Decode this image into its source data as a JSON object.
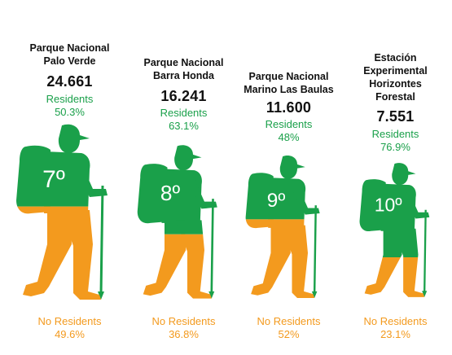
{
  "colors": {
    "residents": "#1aa04a",
    "no_residents": "#f39a1e",
    "text": "#111111"
  },
  "chart_data": {
    "type": "bar",
    "categories": [
      "Parque Nacional Palo Verde",
      "Parque Nacional Barra Honda",
      "Parque Nacional Marino Las Baulas",
      "Estación Experimental Horizontes Forestal"
    ],
    "series": [
      {
        "name": "Residents",
        "values": [
          50.3,
          63.1,
          48,
          76.9
        ]
      },
      {
        "name": "No Residents",
        "values": [
          49.6,
          36.8,
          52,
          23.1
        ]
      }
    ]
  },
  "parks": [
    {
      "name_lines": [
        "Parque Nacional",
        "Palo Verde"
      ],
      "total": "24.661",
      "rank": "7º",
      "residents_label": "Residents",
      "residents_pct": "50.3%",
      "residents_value": 50.3,
      "no_residents_label": "No Residents",
      "no_residents_pct": "49.6%"
    },
    {
      "name_lines": [
        "Parque Nacional",
        "Barra Honda"
      ],
      "total": "16.241",
      "rank": "8º",
      "residents_label": "Residents",
      "residents_pct": "63.1%",
      "residents_value": 63.1,
      "no_residents_label": "No Residents",
      "no_residents_pct": "36.8%"
    },
    {
      "name_lines": [
        "Parque Nacional",
        "Marino Las Baulas"
      ],
      "total": "11.600",
      "rank": "9º",
      "residents_label": "Residents",
      "residents_pct": "48%",
      "residents_value": 48,
      "no_residents_label": "No Residents",
      "no_residents_pct": "52%"
    },
    {
      "name_lines": [
        "Estación",
        "Experimental",
        "Horizontes",
        "Forestal"
      ],
      "total": "7.551",
      "rank": "10º",
      "residents_label": "Residents",
      "residents_pct": "76.9%",
      "residents_value": 76.9,
      "no_residents_label": "No Residents",
      "no_residents_pct": "23.1%"
    }
  ]
}
